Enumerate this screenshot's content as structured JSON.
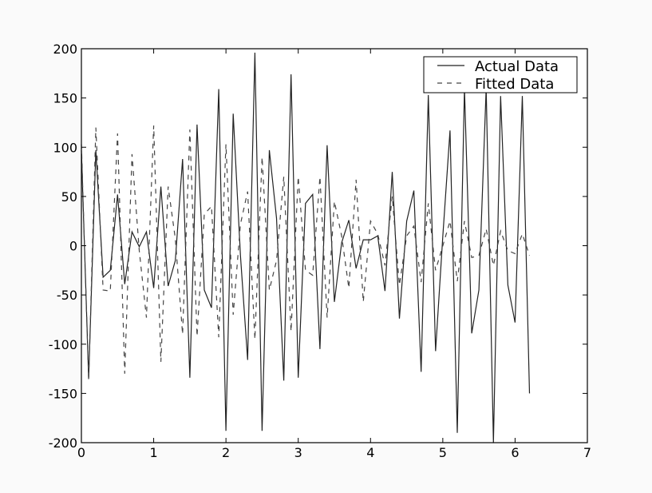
{
  "chart_data": {
    "type": "line",
    "title": "",
    "xlabel": "",
    "ylabel": "",
    "xlim": [
      0,
      7
    ],
    "ylim": [
      -200,
      200
    ],
    "xticks": [
      "0",
      "1",
      "2",
      "3",
      "4",
      "5",
      "6",
      "7"
    ],
    "yticks": [
      "200",
      "150",
      "100",
      "50",
      "0",
      "-50",
      "-100",
      "-150",
      "-200"
    ],
    "grid": false,
    "legend_position": "top-right",
    "x": [
      0.0,
      0.1,
      0.2,
      0.3,
      0.4,
      0.5,
      0.6,
      0.7,
      0.8,
      0.9,
      1.0,
      1.1,
      1.2,
      1.3,
      1.4,
      1.5,
      1.6,
      1.7,
      1.8,
      1.9,
      2.0,
      2.1,
      2.2,
      2.3,
      2.4,
      2.5,
      2.6,
      2.7,
      2.8,
      2.9,
      3.0,
      3.1,
      3.2,
      3.3,
      3.4,
      3.5,
      3.6,
      3.7,
      3.8,
      3.9,
      4.0,
      4.1,
      4.2,
      4.3,
      4.4,
      4.5,
      4.6,
      4.7,
      4.8,
      4.9,
      5.0,
      5.1,
      5.2,
      5.3,
      5.4,
      5.5,
      5.6,
      5.7,
      5.8,
      5.9,
      6.0,
      6.1,
      6.2
    ],
    "series": [
      {
        "name": "Actual Data",
        "style": "solid",
        "color": "#222222",
        "values": [
          97,
          -135,
          97,
          -32,
          -25,
          52,
          -39,
          14,
          -1,
          14,
          -43,
          60,
          -41,
          -15,
          88,
          -134,
          123,
          -45,
          -63,
          159,
          -188,
          134,
          -10,
          -116,
          196,
          -188,
          97,
          28,
          -137,
          174,
          -134,
          43,
          52,
          -105,
          102,
          -57,
          3,
          26,
          -23,
          6,
          6,
          10,
          -46,
          75,
          -74,
          25,
          56,
          -128,
          153,
          -107,
          10,
          117,
          -190,
          160,
          -89,
          -45,
          160,
          -200,
          152,
          -40,
          -78,
          152,
          -150
        ]
      },
      {
        "name": "Fitted Data",
        "style": "dashed",
        "color": "#444444",
        "values": [
          103,
          -137,
          120,
          -45,
          -46,
          114,
          -130,
          93,
          -5,
          -73,
          122,
          -118,
          60,
          7,
          -90,
          118,
          -92,
          32,
          40,
          -93,
          103,
          -70,
          22,
          55,
          -95,
          90,
          -45,
          -15,
          70,
          -87,
          70,
          -25,
          -30,
          70,
          -73,
          45,
          10,
          -43,
          67,
          -57,
          25,
          12,
          -20,
          50,
          -40,
          10,
          20,
          -37,
          43,
          -25,
          0,
          25,
          -36,
          25,
          -12,
          -10,
          17,
          -20,
          15,
          -5,
          -8,
          12,
          -10
        ]
      }
    ]
  }
}
